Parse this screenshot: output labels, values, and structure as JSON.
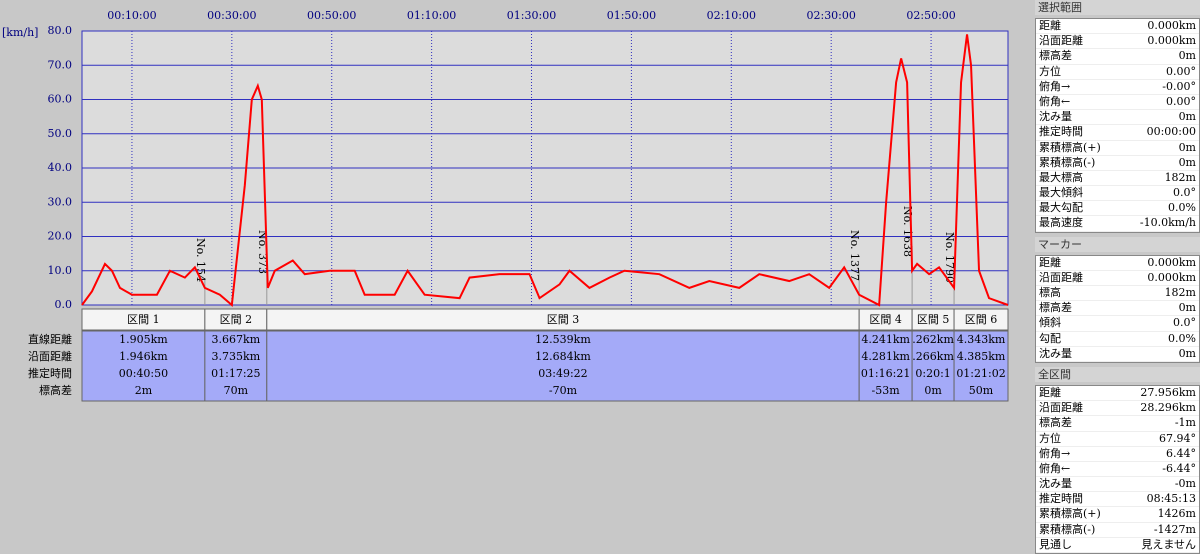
{
  "chart_data": {
    "type": "line",
    "ylabel": "[km/h]",
    "color": "#ff0000",
    "xlim": [
      0,
      185.4
    ],
    "ylim": [
      0,
      80
    ],
    "xticks": [
      {
        "value": 10,
        "label": "00:10:00"
      },
      {
        "value": 30,
        "label": "00:30:00"
      },
      {
        "value": 50,
        "label": "00:50:00"
      },
      {
        "value": 70,
        "label": "01:10:00"
      },
      {
        "value": 90,
        "label": "01:30:00"
      },
      {
        "value": 110,
        "label": "01:50:00"
      },
      {
        "value": 130,
        "label": "02:10:00"
      },
      {
        "value": 150,
        "label": "02:30:00"
      },
      {
        "value": 170,
        "label": "02:50:00"
      }
    ],
    "yticks": [
      {
        "value": 0,
        "label": "0.0"
      },
      {
        "value": 10,
        "label": "10.0"
      },
      {
        "value": 20,
        "label": "20.0"
      },
      {
        "value": 30,
        "label": "30.0"
      },
      {
        "value": 40,
        "label": "40.0"
      },
      {
        "value": 50,
        "label": "50.0"
      },
      {
        "value": 60,
        "label": "60.0"
      },
      {
        "value": 70,
        "label": "70.0"
      },
      {
        "value": 80,
        "label": "80.0"
      }
    ],
    "grid": true,
    "x": [
      0,
      2,
      4.6,
      6,
      7.6,
      10,
      15,
      17.6,
      20.6,
      22.6,
      24.6,
      27.6,
      30,
      32.6,
      34,
      35.2,
      36,
      37.2,
      38.6,
      42.2,
      44.6,
      49.6,
      54.6,
      56.6,
      62.6,
      65.2,
      68.6,
      75.6,
      77.6,
      83.6,
      89.6,
      91.6,
      95.6,
      97.6,
      101.6,
      105.6,
      108.6,
      115.6,
      121.6,
      125.6,
      131.6,
      135.6,
      141.6,
      145.6,
      149.6,
      152.6,
      155.6,
      159.6,
      161,
      163,
      164,
      165.2,
      166.2,
      167.2,
      169.6,
      171.6,
      174.6,
      176,
      177.2,
      178,
      179.6,
      181.6,
      185.4
    ],
    "values": [
      0,
      4,
      12,
      10,
      5,
      3,
      3,
      10,
      8,
      11,
      5,
      3,
      0,
      35,
      60,
      64,
      60,
      5,
      10,
      13,
      9,
      10,
      10,
      3,
      3,
      10,
      3,
      2,
      8,
      9,
      9,
      2,
      6,
      10,
      5,
      8,
      10,
      9,
      5,
      7,
      5,
      9,
      7,
      9,
      5,
      11,
      3,
      0,
      30,
      65,
      72,
      65,
      10,
      12,
      9,
      11,
      5,
      65,
      79,
      70,
      10,
      2,
      0
    ],
    "markers": [
      {
        "x": 24.6,
        "label": "No. 154"
      },
      {
        "x": 37,
        "label": "No. 373"
      },
      {
        "x": 155.6,
        "label": "No. 1377"
      },
      {
        "x": 166.2,
        "label": "No. 1638"
      },
      {
        "x": 174.6,
        "label": "No. 1790"
      }
    ]
  },
  "sections": {
    "row_labels": [
      "直線距離",
      "沿面距離",
      "推定時間",
      "標高差"
    ],
    "columns": [
      {
        "name": "区間 1",
        "values": [
          "1.905km",
          "1.946km",
          "00:40:50",
          "2m"
        ]
      },
      {
        "name": "区間 2",
        "values": [
          "3.667km",
          "3.735km",
          "01:17:25",
          "70m"
        ]
      },
      {
        "name": "区間 3",
        "values": [
          "12.539km",
          "12.684km",
          "03:49:22",
          "-70m"
        ]
      },
      {
        "name": "区間 4",
        "values": [
          "4.241km",
          "4.281km",
          "01:16:21",
          "-53m"
        ]
      },
      {
        "name": "区間 5",
        "values": [
          ".262km",
          ".266km",
          "0:20:1",
          "0m"
        ]
      },
      {
        "name": "区間 6",
        "values": [
          "4.343km",
          "4.385km",
          "01:21:02",
          "50m"
        ]
      }
    ]
  },
  "side_panel": [
    {
      "title": "選択範囲",
      "rows": [
        [
          "距離",
          "0.000km"
        ],
        [
          "沿面距離",
          "0.000km"
        ],
        [
          "標高差",
          "0m"
        ],
        [
          "方位",
          "0.00°"
        ],
        [
          "俯角→",
          "-0.00°"
        ],
        [
          "俯角←",
          "0.00°"
        ],
        [
          "沈み量",
          "0m"
        ],
        [
          "推定時間",
          "00:00:00"
        ],
        [
          "累積標高(+)",
          "0m"
        ],
        [
          "累積標高(-)",
          "0m"
        ],
        [
          "最大標高",
          "182m"
        ],
        [
          "最大傾斜",
          "0.0°"
        ],
        [
          "最大勾配",
          "0.0%"
        ],
        [
          "最高速度",
          "-10.0km/h"
        ]
      ]
    },
    {
      "title": "マーカー",
      "rows": [
        [
          "距離",
          "0.000km"
        ],
        [
          "沿面距離",
          "0.000km"
        ],
        [
          "標高",
          "182m"
        ],
        [
          "標高差",
          "0m"
        ],
        [
          "傾斜",
          "0.0°"
        ],
        [
          "勾配",
          "0.0%"
        ],
        [
          "沈み量",
          "0m"
        ]
      ]
    },
    {
      "title": "全区間",
      "rows": [
        [
          "距離",
          "27.956km"
        ],
        [
          "沿面距離",
          "28.296km"
        ],
        [
          "標高差",
          "-1m"
        ],
        [
          "方位",
          "67.94°"
        ],
        [
          "俯角→",
          "6.44°"
        ],
        [
          "俯角←",
          "-6.44°"
        ],
        [
          "沈み量",
          "-0m"
        ],
        [
          "推定時間",
          "08:45:13"
        ],
        [
          "累積標高(+)",
          "1426m"
        ],
        [
          "累積標高(-)",
          "-1427m"
        ],
        [
          "見通し",
          "見えません"
        ]
      ]
    }
  ]
}
